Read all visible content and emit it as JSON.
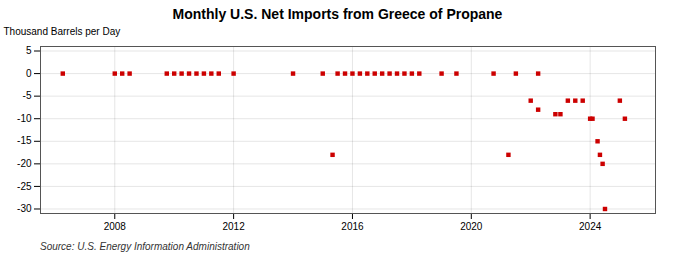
{
  "chart_data": {
    "type": "scatter",
    "title": "Monthly U.S. Net Imports from Greece of Propane",
    "ylabel": "Thousand Barrels per Day",
    "source": "Source: U.S. Energy Information Administration",
    "x": [
      2006.25,
      2008.0,
      2008.25,
      2008.5,
      2009.75,
      2010.0,
      2010.25,
      2010.5,
      2010.75,
      2011.0,
      2011.25,
      2011.5,
      2012.0,
      2014.0,
      2015.0,
      2015.5,
      2015.75,
      2016.0,
      2016.25,
      2016.5,
      2016.75,
      2017.0,
      2017.25,
      2017.5,
      2017.75,
      2018.0,
      2018.25,
      2019.0,
      2019.5,
      2020.75,
      2021.5,
      2022.25,
      2015.33,
      2021.25,
      2022.0,
      2022.25,
      2022.83,
      2023.0,
      2023.25,
      2023.5,
      2023.75,
      2024.0,
      2024.08,
      2024.25,
      2024.33,
      2024.42,
      2024.5,
      2025.0,
      2025.17
    ],
    "values": [
      0,
      0,
      0,
      0,
      0,
      0,
      0,
      0,
      0,
      0,
      0,
      0,
      0,
      0,
      0,
      0,
      0,
      0,
      0,
      0,
      0,
      0,
      0,
      0,
      0,
      0,
      0,
      0,
      0,
      0,
      0,
      0,
      -18,
      -18,
      -6,
      -8,
      -9,
      -9,
      -6,
      -6,
      -6,
      -10,
      -10,
      -15,
      -18,
      -20,
      -30,
      -6,
      -10
    ],
    "color": "#cc0000",
    "marker": "square",
    "xlim": [
      2005.5,
      2026.2
    ],
    "ylim": [
      -31,
      6
    ],
    "xticks": [
      2008,
      2012,
      2016,
      2020,
      2024
    ],
    "yticks": [
      5,
      0,
      -5,
      -10,
      -15,
      -20,
      -25,
      -30
    ],
    "grid": true
  }
}
